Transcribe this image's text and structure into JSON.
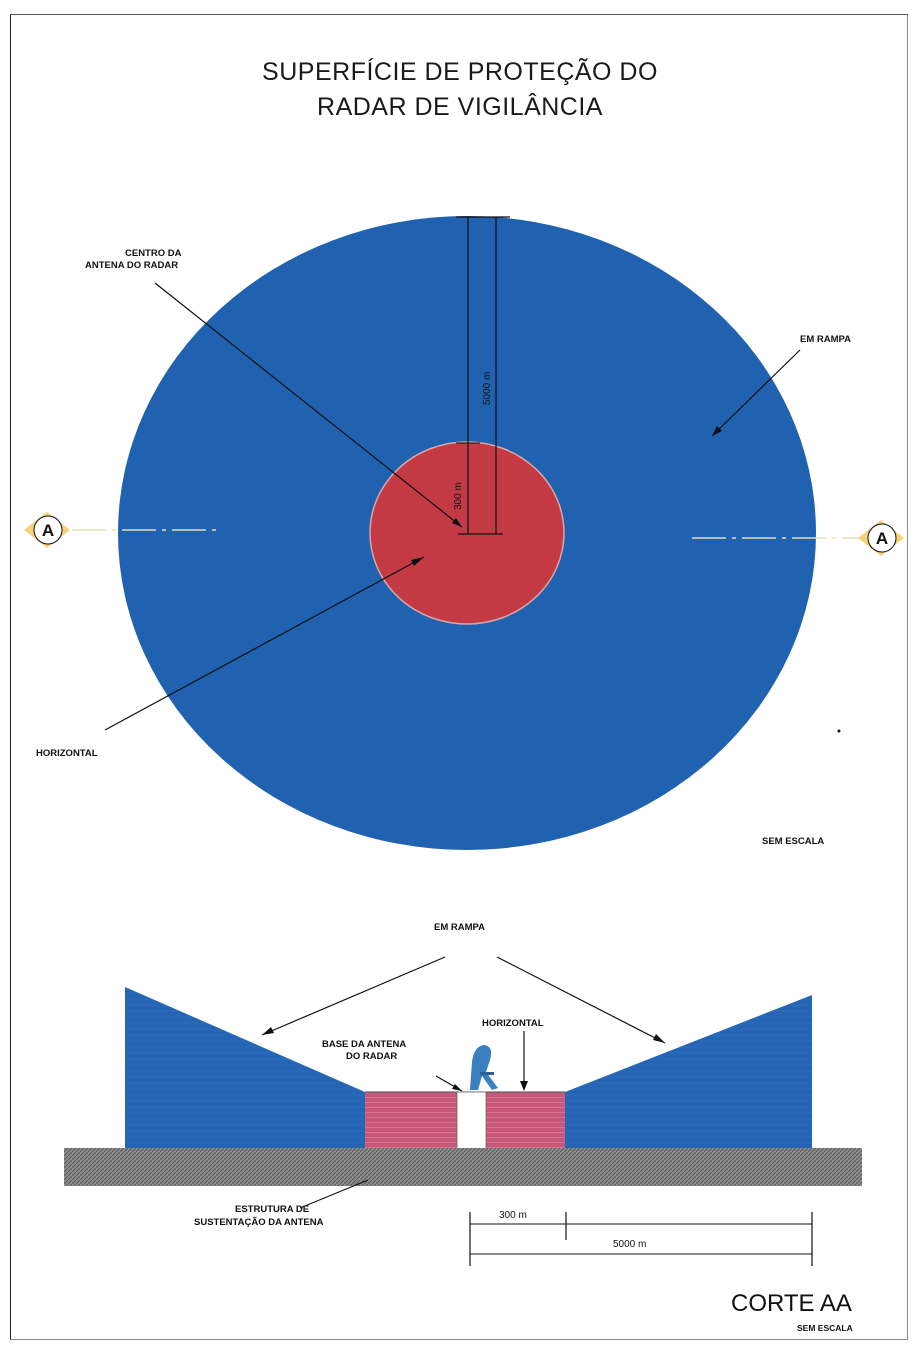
{
  "title": {
    "line1": "SUPERFÍCIE DE PROTEÇÃO DO",
    "line2": "RADAR DE VIGILÂNCIA"
  },
  "plan": {
    "label_center_line1": "CENTRO DA",
    "label_center_line2": "ANTENA DO RADAR",
    "label_ramp": "EM RAMPA",
    "label_horizontal": "HORIZONTAL",
    "label_scale": "SEM ESCALA",
    "dim_inner": "300 m",
    "dim_outer": "5000 m",
    "section_marker_left": "A",
    "section_marker_right": "A"
  },
  "section": {
    "label_ramp": "EM RAMPA",
    "label_horizontal": "HORIZONTAL",
    "label_base_line1": "BASE DA ANTENA",
    "label_base_line2": "DO RADAR",
    "label_structure_line1": "ESTRUTURA DE",
    "label_structure_line2": "SUSTENTAÇÃO DA ANTENA",
    "dim_inner": "300 m",
    "dim_outer": "5000 m",
    "title": "CORTE AA",
    "scale": "SEM ESCALA"
  },
  "colors": {
    "ramp": "#2060b0",
    "horizontal_plan": "#c23a45",
    "horizontal_section": "#cc5a7a",
    "ground": "#8a8a8a",
    "antenna": "#3a7fc0"
  }
}
